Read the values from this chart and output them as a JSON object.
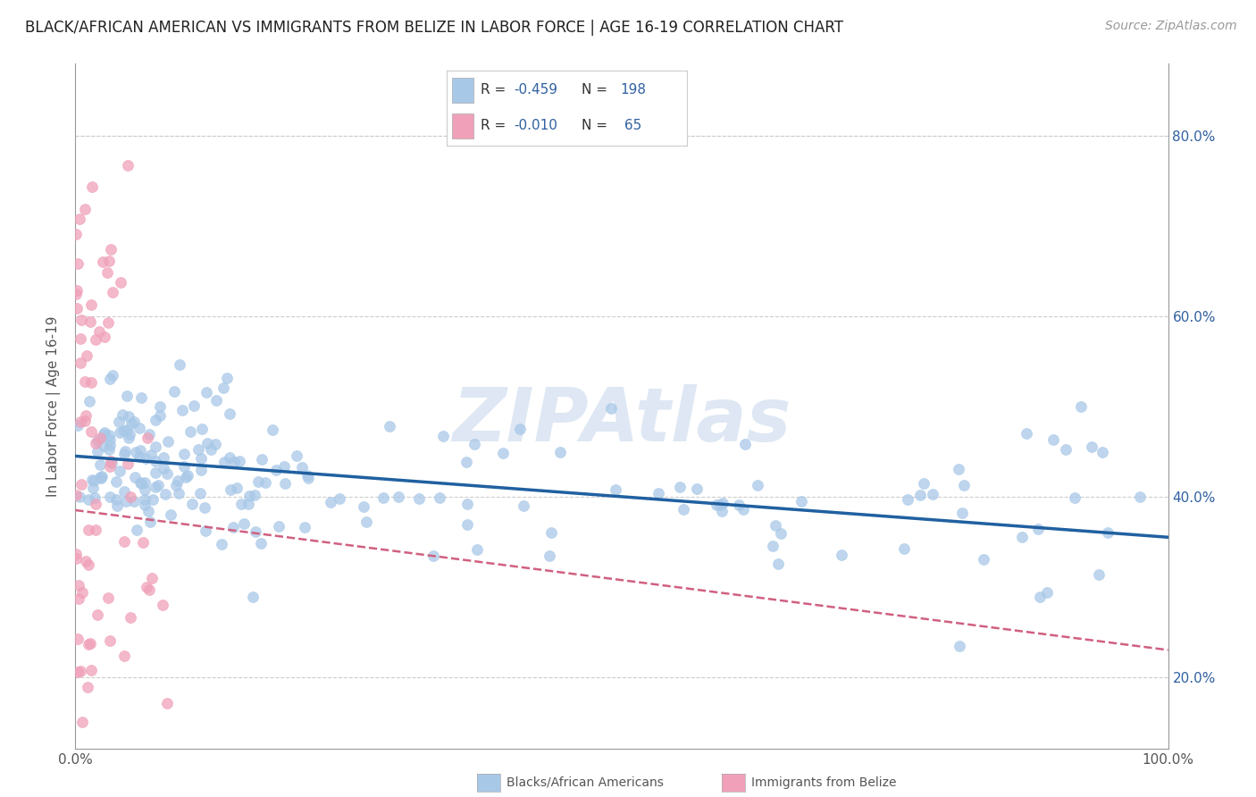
{
  "title": "BLACK/AFRICAN AMERICAN VS IMMIGRANTS FROM BELIZE IN LABOR FORCE | AGE 16-19 CORRELATION CHART",
  "source": "Source: ZipAtlas.com",
  "ylabel": "In Labor Force | Age 16-19",
  "xlim": [
    0.0,
    1.0
  ],
  "ylim": [
    0.12,
    0.88
  ],
  "x_ticks": [
    0.0,
    0.2,
    0.4,
    0.6,
    0.8,
    1.0
  ],
  "y_ticks": [
    0.2,
    0.4,
    0.6,
    0.8
  ],
  "x_tick_labels_show": [
    "0.0%",
    "",
    "",
    "",
    "",
    "100.0%"
  ],
  "y_tick_labels": [
    "20.0%",
    "40.0%",
    "60.0%",
    "80.0%"
  ],
  "blue_color": "#a8c8e8",
  "pink_color": "#f0a0b8",
  "blue_line_color": "#2060a0",
  "pink_line_color": "#d06080",
  "watermark": "ZIPAtlas",
  "watermark_color": "#c8d8ec",
  "background_color": "#ffffff",
  "title_fontsize": 12,
  "source_fontsize": 10,
  "axis_label_fontsize": 11,
  "tick_fontsize": 11,
  "legend_label_blue": "Blacks/African Americans",
  "legend_label_pink": "Immigrants from Belize",
  "grid_color": "#cccccc",
  "spine_color": "#999999",
  "label_color": "#3060a0",
  "text_color": "#555555"
}
